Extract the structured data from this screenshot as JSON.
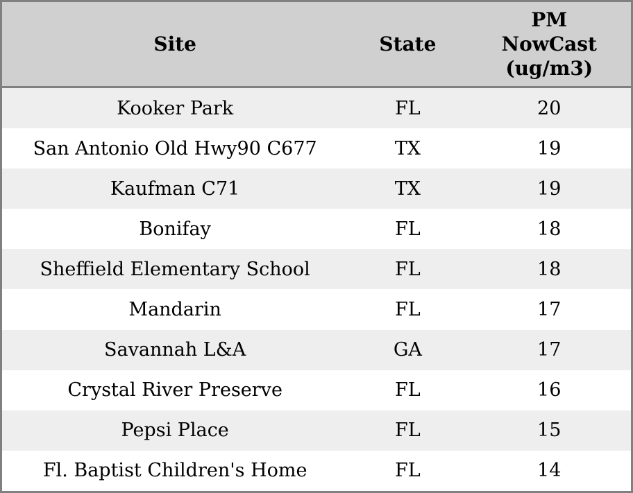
{
  "colors": {
    "frame_border": "#808080",
    "header_background": "#d0d0d0",
    "row_stripe": "#eeeeee",
    "row_plain": "#ffffff",
    "text": "#000000"
  },
  "table": {
    "columns": {
      "site_label": "Site",
      "state_label": "State",
      "value_label": "PM NowCast (ug/m3)"
    },
    "rows": [
      {
        "site": "Kooker Park",
        "state": "FL",
        "value": "20"
      },
      {
        "site": "San Antonio Old Hwy90 C677",
        "state": "TX",
        "value": "19"
      },
      {
        "site": "Kaufman C71",
        "state": "TX",
        "value": "19"
      },
      {
        "site": "Bonifay",
        "state": "FL",
        "value": "18"
      },
      {
        "site": "Sheffield Elementary School",
        "state": "FL",
        "value": "18"
      },
      {
        "site": "Mandarin",
        "state": "FL",
        "value": "17"
      },
      {
        "site": "Savannah L&A",
        "state": "GA",
        "value": "17"
      },
      {
        "site": "Crystal River Preserve",
        "state": "FL",
        "value": "16"
      },
      {
        "site": "Pepsi Place",
        "state": "FL",
        "value": "15"
      },
      {
        "site": "Fl. Baptist Children's Home",
        "state": "FL",
        "value": "14"
      }
    ]
  },
  "chart_data": {
    "type": "table",
    "title": "",
    "columns": [
      "Site",
      "State",
      "PM NowCast (ug/m3)"
    ],
    "rows": [
      [
        "Kooker Park",
        "FL",
        20
      ],
      [
        "San Antonio Old Hwy90 C677",
        "TX",
        19
      ],
      [
        "Kaufman C71",
        "TX",
        19
      ],
      [
        "Bonifay",
        "FL",
        18
      ],
      [
        "Sheffield Elementary School",
        "FL",
        18
      ],
      [
        "Mandarin",
        "FL",
        17
      ],
      [
        "Savannah L&A",
        "GA",
        17
      ],
      [
        "Crystal River Preserve",
        "FL",
        16
      ],
      [
        "Pepsi Place",
        "FL",
        15
      ],
      [
        "Fl. Baptist Children's Home",
        "FL",
        14
      ]
    ],
    "layout_hints": {
      "striped_rows": true,
      "header_band": true,
      "all_cells_center_aligned": true
    }
  }
}
